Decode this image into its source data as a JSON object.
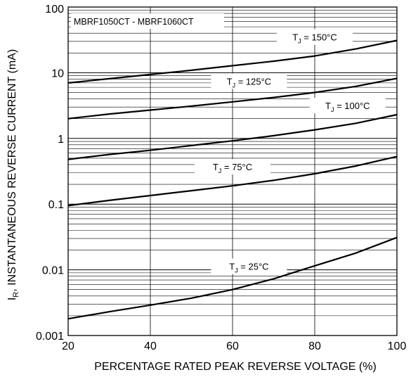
{
  "chart_data": {
    "type": "line",
    "title": "",
    "xlabel": "PERCENTAGE RATED PEAK REVERSE VOLTAGE (%)",
    "ylabel": {
      "symbol": "I",
      "subscript": "R",
      "rest": ", INSTANTANEOUS REVERSE CURRENT (mA)"
    },
    "xlim": [
      20,
      100
    ],
    "ylim": [
      0.001,
      100
    ],
    "yscale": "log",
    "grid": true,
    "x_ticks": [
      "20",
      "40",
      "60",
      "80",
      "100"
    ],
    "x_tick_values": [
      20,
      40,
      60,
      80,
      100
    ],
    "y_ticks": [
      "100",
      "10",
      "1",
      "0.1",
      "0.01",
      "0.001"
    ],
    "y_tick_values": [
      100,
      10,
      1,
      0.1,
      0.01,
      0.001
    ],
    "annotation": "MBRF1050CT - MBRF1060CT",
    "x": [
      20,
      30,
      40,
      50,
      60,
      70,
      80,
      90,
      100
    ],
    "series": [
      {
        "label": {
          "pre": "T",
          "sub": "J",
          "post": " = 150°C"
        },
        "values": [
          7.0,
          8.1,
          9.4,
          10.9,
          12.8,
          15.0,
          18.0,
          23.0,
          31.0
        ]
      },
      {
        "label": {
          "pre": "T",
          "sub": "J",
          "post": " = 125°C"
        },
        "values": [
          2.0,
          2.35,
          2.7,
          3.1,
          3.6,
          4.2,
          5.0,
          6.2,
          8.2
        ]
      },
      {
        "label": {
          "pre": "T",
          "sub": "J",
          "post": " = 100°C"
        },
        "values": [
          0.48,
          0.57,
          0.66,
          0.78,
          0.92,
          1.1,
          1.35,
          1.7,
          2.3
        ]
      },
      {
        "label": {
          "pre": "T",
          "sub": "J",
          "post": " = 75°C"
        },
        "values": [
          0.095,
          0.114,
          0.135,
          0.16,
          0.19,
          0.23,
          0.29,
          0.38,
          0.53
        ]
      },
      {
        "label": {
          "pre": "T",
          "sub": "J",
          "post": " = 25°C"
        },
        "values": [
          0.0018,
          0.0023,
          0.0029,
          0.0037,
          0.005,
          0.0073,
          0.0115,
          0.018,
          0.031
        ]
      }
    ],
    "line_color": "#000000"
  }
}
